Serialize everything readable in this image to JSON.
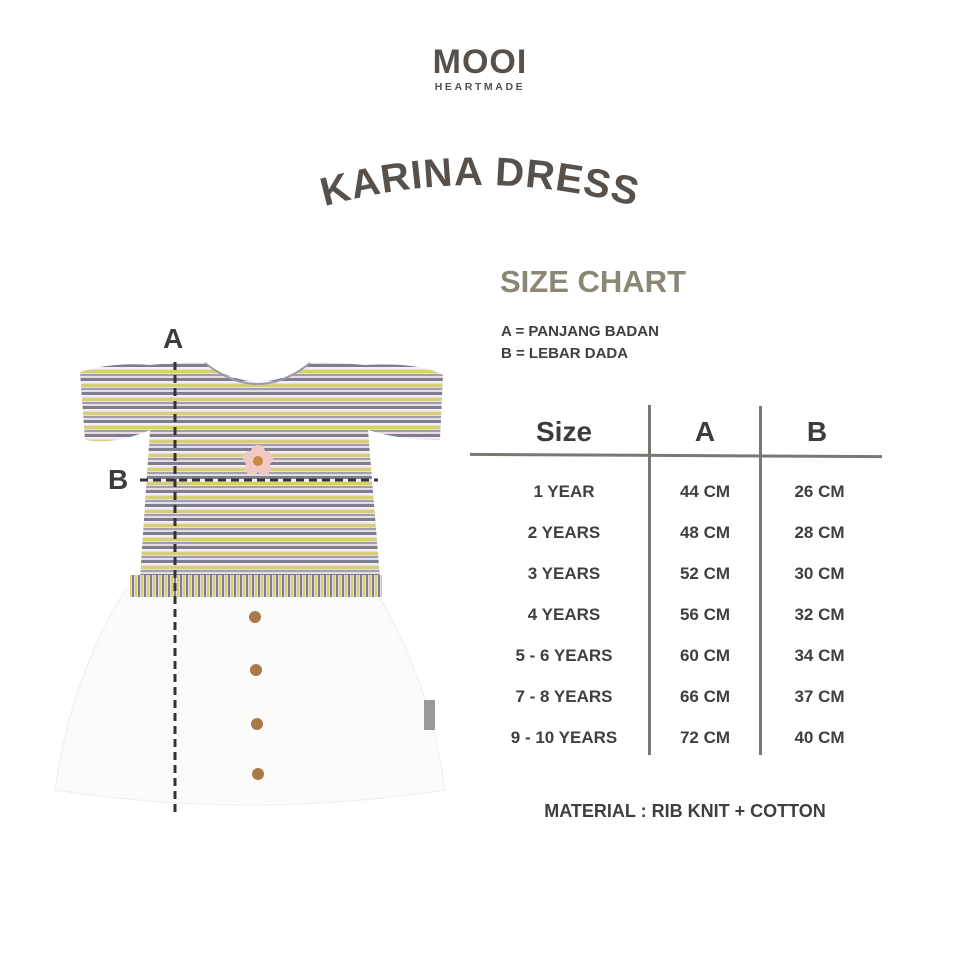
{
  "brand": {
    "name": "MOOI",
    "tagline": "HEARTMADE"
  },
  "product_title": "KARINA DRESS",
  "size_chart": {
    "title": "SIZE CHART",
    "legend": [
      "A = PANJANG BADAN",
      "B = LEBAR DADA"
    ],
    "columns": [
      "Size",
      "A",
      "B"
    ],
    "rows": [
      [
        "1 YEAR",
        "44 CM",
        "26 CM"
      ],
      [
        "2 YEARS",
        "48 CM",
        "28 CM"
      ],
      [
        "3 YEARS",
        "52 CM",
        "30 CM"
      ],
      [
        "4 YEARS",
        "56 CM",
        "32 CM"
      ],
      [
        "5 - 6 YEARS",
        "60 CM",
        "34 CM"
      ],
      [
        "7 - 8 YEARS",
        "66 CM",
        "37 CM"
      ],
      [
        "9 - 10 YEARS",
        "72 CM",
        "40 CM"
      ]
    ],
    "material": "MATERIAL : RIB KNIT + COTTON"
  },
  "measure_labels": {
    "a": "A",
    "b": "B"
  },
  "colors": {
    "text": "#4a4542",
    "accent": "#8c8677",
    "lines": "#7b7873"
  }
}
